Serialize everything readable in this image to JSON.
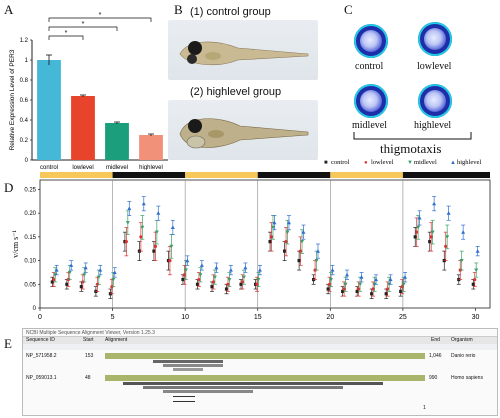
{
  "panels": {
    "A": "A",
    "B": "B",
    "C": "C",
    "D": "D",
    "E": "E"
  },
  "panel_a": {
    "ylabel": "Relative Expression Level of PER3",
    "significance": [
      "*",
      "*",
      "*"
    ]
  },
  "panel_b": {
    "control_label": "(1) control group",
    "high_label": "(2) highlevel group"
  },
  "panel_c": {
    "labels": [
      "control",
      "lowlevel",
      "midlevel",
      "highlevel"
    ],
    "caption": "thigmotaxis"
  },
  "panel_d": {
    "ylabel": "v/cm s⁻¹",
    "legend": [
      "control",
      "lowlevel",
      "midlevel",
      "highlevel"
    ]
  },
  "panel_e": {
    "title": "NCBI Multiple Sequence Alignment Viewer, Version 1.25.3",
    "headers": [
      "Sequence ID",
      "Start",
      "Alignment",
      "End",
      "Organism"
    ],
    "rows": [
      {
        "id": "NP_571958.2",
        "start": "153",
        "end": "1,046",
        "organism": "Danio rerio"
      },
      {
        "id": "NP_059013.1",
        "start": "48",
        "end": "990",
        "organism": "Homo sapiens"
      }
    ],
    "page": "1"
  },
  "chart_data": [
    {
      "type": "bar",
      "categories": [
        "control",
        "lowlevel",
        "midlevel",
        "highlevel"
      ],
      "values": [
        1.0,
        0.64,
        0.37,
        0.25
      ],
      "errors": [
        0.05,
        0.01,
        0.01,
        0.01
      ],
      "colors": [
        "#45b8d8",
        "#e8442c",
        "#1a9e7c",
        "#f2917a"
      ],
      "ylim": [
        0,
        1.2
      ],
      "yticks": [
        "0",
        "0.2",
        "0.4",
        "0.6",
        "0.8",
        "1",
        "1.2"
      ],
      "ylabel": "Relative Expression Level of PER3"
    },
    {
      "type": "line",
      "x": [
        1,
        2,
        3,
        4,
        5,
        6,
        7,
        8,
        9,
        10,
        11,
        12,
        13,
        14,
        15,
        16,
        17,
        18,
        19,
        20,
        21,
        22,
        23,
        24,
        25,
        26,
        27,
        28,
        29,
        30
      ],
      "xticks": [
        0,
        5,
        10,
        15,
        20,
        25,
        30
      ],
      "yticks": [
        "0",
        "0.05",
        "0.10",
        "0.15",
        "0.20",
        "0.25"
      ],
      "ylim": [
        0,
        0.27
      ],
      "xlim": [
        0,
        31
      ],
      "ylabel": "v/cm s⁻¹",
      "light_phases": [
        [
          0,
          5,
          "light"
        ],
        [
          5,
          10,
          "dark"
        ],
        [
          10,
          15,
          "light"
        ],
        [
          15,
          20,
          "dark"
        ],
        [
          20,
          25,
          "light"
        ],
        [
          25,
          31,
          "dark"
        ]
      ],
      "series": [
        {
          "name": "control",
          "color": "#222222",
          "marker": "square",
          "values": [
            0.055,
            0.05,
            0.045,
            0.035,
            0.03,
            0.14,
            0.12,
            0.12,
            0.1,
            0.06,
            0.05,
            0.045,
            0.04,
            0.05,
            0.05,
            0.14,
            0.12,
            0.1,
            0.06,
            0.04,
            0.035,
            0.035,
            0.03,
            0.03,
            0.035,
            0.15,
            0.14,
            0.1,
            0.06,
            0.05
          ],
          "errors": [
            0.01,
            0.01,
            0.01,
            0.01,
            0.01,
            0.02,
            0.02,
            0.02,
            0.02,
            0.01,
            0.01,
            0.01,
            0.01,
            0.01,
            0.01,
            0.02,
            0.02,
            0.02,
            0.01,
            0.01,
            0.01,
            0.01,
            0.01,
            0.01,
            0.01,
            0.02,
            0.02,
            0.02,
            0.01,
            0.01
          ]
        },
        {
          "name": "lowlevel",
          "color": "#e03030",
          "marker": "circle",
          "values": [
            0.06,
            0.06,
            0.055,
            0.05,
            0.045,
            0.14,
            0.15,
            0.13,
            0.1,
            0.07,
            0.06,
            0.055,
            0.05,
            0.055,
            0.05,
            0.15,
            0.14,
            0.12,
            0.08,
            0.05,
            0.04,
            0.04,
            0.04,
            0.04,
            0.045,
            0.16,
            0.15,
            0.13,
            0.08,
            0.06
          ],
          "errors": [
            0.015,
            0.015,
            0.015,
            0.015,
            0.015,
            0.03,
            0.03,
            0.03,
            0.03,
            0.02,
            0.015,
            0.015,
            0.015,
            0.015,
            0.015,
            0.03,
            0.03,
            0.03,
            0.02,
            0.015,
            0.015,
            0.015,
            0.015,
            0.015,
            0.015,
            0.03,
            0.03,
            0.03,
            0.02,
            0.015
          ]
        },
        {
          "name": "midlevel",
          "color": "#3aa06a",
          "marker": "triangle-down",
          "values": [
            0.07,
            0.075,
            0.07,
            0.065,
            0.06,
            0.18,
            0.17,
            0.16,
            0.13,
            0.08,
            0.07,
            0.065,
            0.06,
            0.065,
            0.06,
            0.17,
            0.16,
            0.14,
            0.1,
            0.06,
            0.05,
            0.05,
            0.05,
            0.05,
            0.05,
            0.17,
            0.16,
            0.15,
            0.1,
            0.08
          ],
          "errors": [
            0.015,
            0.015,
            0.015,
            0.015,
            0.015,
            0.025,
            0.025,
            0.025,
            0.025,
            0.02,
            0.015,
            0.015,
            0.015,
            0.015,
            0.015,
            0.025,
            0.025,
            0.025,
            0.02,
            0.015,
            0.015,
            0.015,
            0.015,
            0.015,
            0.015,
            0.025,
            0.025,
            0.025,
            0.02,
            0.015
          ]
        },
        {
          "name": "highlevel",
          "color": "#2f6fd0",
          "marker": "triangle",
          "values": [
            0.08,
            0.09,
            0.085,
            0.08,
            0.075,
            0.21,
            0.22,
            0.2,
            0.17,
            0.1,
            0.09,
            0.085,
            0.08,
            0.085,
            0.08,
            0.18,
            0.18,
            0.16,
            0.12,
            0.08,
            0.07,
            0.065,
            0.06,
            0.06,
            0.065,
            0.19,
            0.22,
            0.2,
            0.16,
            0.12
          ],
          "errors": [
            0.01,
            0.01,
            0.01,
            0.01,
            0.01,
            0.015,
            0.015,
            0.015,
            0.015,
            0.01,
            0.01,
            0.01,
            0.01,
            0.01,
            0.01,
            0.015,
            0.015,
            0.015,
            0.015,
            0.01,
            0.01,
            0.01,
            0.01,
            0.01,
            0.01,
            0.015,
            0.015,
            0.015,
            0.015,
            0.01
          ]
        }
      ]
    }
  ]
}
